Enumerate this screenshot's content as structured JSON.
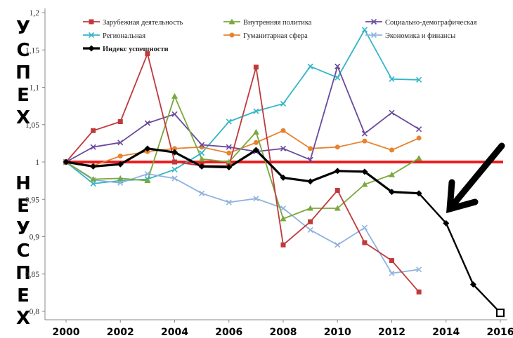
{
  "side_labels": {
    "top": [
      "У",
      "С",
      "П",
      "Е",
      "Х"
    ],
    "bottom": [
      "Н",
      "Е",
      "У",
      "С",
      "П",
      "Е",
      "Х"
    ]
  },
  "chart_data": {
    "type": "line",
    "title": "",
    "xlabel": "",
    "ylabel": "",
    "xlim": [
      2000,
      2016
    ],
    "ylim": [
      0.8,
      1.2
    ],
    "x_ticks": [
      "2000",
      "2002",
      "2004",
      "2006",
      "2008",
      "2010",
      "2012",
      "2014",
      "2016"
    ],
    "y_ticks": [
      "0,8",
      "0,85",
      "0,9",
      "0,95",
      "1",
      "1,05",
      "1,1",
      "1,15",
      "1,2"
    ],
    "grid": false,
    "legend_position": "top",
    "reference_line": {
      "y": 1.0,
      "color": "#ee1c1c"
    },
    "series": [
      {
        "name": "Зарубежная деятельность",
        "color": "#c0393b",
        "marker": "square",
        "x": [
          2000,
          2001,
          2002,
          2003,
          2004,
          2005,
          2006,
          2007,
          2008,
          2009,
          2010,
          2011,
          2012,
          2013
        ],
        "y": [
          1.0,
          1.042,
          1.054,
          1.145,
          1.0,
          0.995,
          0.995,
          1.127,
          0.889,
          0.92,
          0.962,
          0.892,
          0.868,
          0.826
        ]
      },
      {
        "name": "Внутренняя политика",
        "color": "#7aa83c",
        "marker": "triangle",
        "x": [
          2000,
          2001,
          2002,
          2003,
          2004,
          2005,
          2006,
          2007,
          2008,
          2009,
          2010,
          2011,
          2012,
          2013
        ],
        "y": [
          1.0,
          0.977,
          0.978,
          0.975,
          1.088,
          1.004,
          1.0,
          1.04,
          0.924,
          0.938,
          0.938,
          0.97,
          0.983,
          1.005
        ]
      },
      {
        "name": "Социально-демографическая",
        "color": "#6a4a9c",
        "marker": "x",
        "x": [
          2000,
          2001,
          2002,
          2003,
          2004,
          2005,
          2006,
          2007,
          2008,
          2009,
          2010,
          2011,
          2012,
          2013
        ],
        "y": [
          1.0,
          1.02,
          1.026,
          1.052,
          1.064,
          1.023,
          1.02,
          1.014,
          1.018,
          1.003,
          1.128,
          1.038,
          1.066,
          1.044
        ]
      },
      {
        "name": "Региональная",
        "color": "#33b5c8",
        "marker": "x",
        "x": [
          2000,
          2001,
          2002,
          2003,
          2004,
          2005,
          2006,
          2007,
          2008,
          2009,
          2010,
          2011,
          2012,
          2013
        ],
        "y": [
          1.0,
          0.971,
          0.975,
          0.977,
          0.99,
          1.012,
          1.054,
          1.068,
          1.078,
          1.128,
          1.113,
          1.177,
          1.111,
          1.11
        ]
      },
      {
        "name": "Гуманитарная сфера",
        "color": "#e8822e",
        "marker": "circle",
        "x": [
          2000,
          2001,
          2002,
          2003,
          2004,
          2005,
          2006,
          2007,
          2008,
          2009,
          2010,
          2011,
          2012,
          2013
        ],
        "y": [
          1.0,
          0.995,
          1.008,
          1.014,
          1.018,
          1.02,
          1.012,
          1.026,
          1.042,
          1.018,
          1.02,
          1.028,
          1.016,
          1.032
        ]
      },
      {
        "name": "Экономика и финансы",
        "color": "#8fb3de",
        "marker": "x",
        "x": [
          2000,
          2001,
          2002,
          2003,
          2004,
          2005,
          2006,
          2007,
          2008,
          2009,
          2010,
          2011,
          2012,
          2013
        ],
        "y": [
          1.0,
          0.976,
          0.972,
          0.984,
          0.978,
          0.958,
          0.946,
          0.951,
          0.938,
          0.909,
          0.889,
          0.912,
          0.851,
          0.856
        ]
      },
      {
        "name": "Индекс успешности",
        "color": "#000000",
        "marker": "diamond",
        "bold": true,
        "x": [
          2000,
          2001,
          2002,
          2003,
          2004,
          2005,
          2006,
          2007,
          2008,
          2009,
          2010,
          2011,
          2012,
          2013
        ],
        "y": [
          1.0,
          0.994,
          0.997,
          1.018,
          1.013,
          0.994,
          0.993,
          1.016,
          0.979,
          0.974,
          0.988,
          0.987,
          0.96,
          0.958
        ]
      }
    ],
    "projection": {
      "color": "#000000",
      "x": [
        2013,
        2014,
        2015,
        2016
      ],
      "y": [
        0.958,
        0.918,
        0.836,
        0.798
      ]
    }
  }
}
